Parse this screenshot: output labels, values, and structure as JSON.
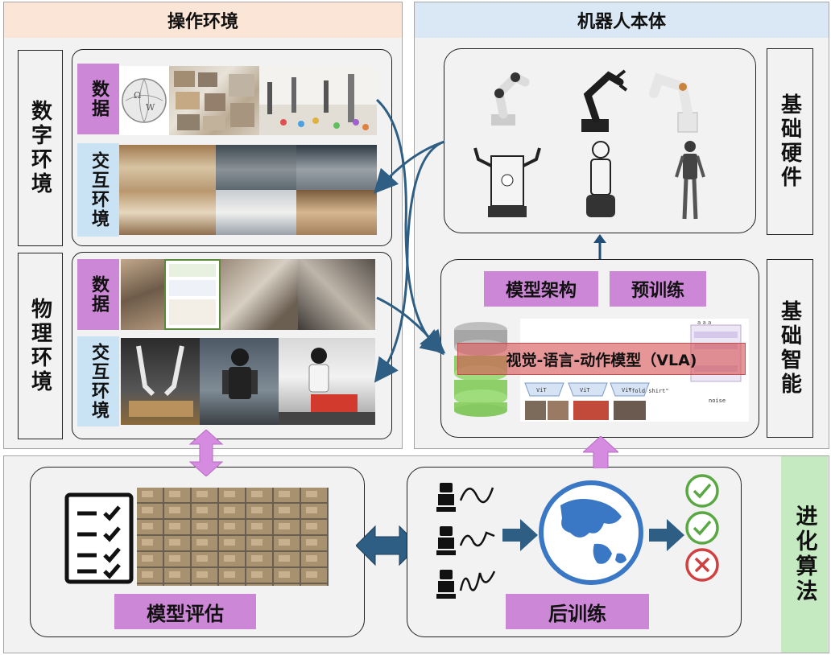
{
  "sections": {
    "operation_env": "操作环境",
    "robot_body": "机器人本体",
    "evolution_algo": "进化算法"
  },
  "left_labels": {
    "digital_env": "数字环境",
    "physical_env": "物理环境"
  },
  "tags": {
    "digital_data": "数据",
    "digital_interact": "交互环境",
    "physical_data": "数据",
    "physical_interact": "交互环境"
  },
  "right_labels": {
    "base_hardware": "基础硬件",
    "base_intelligence": "基础智能"
  },
  "intelligence": {
    "model_arch": "模型架构",
    "pretrain": "预训练",
    "vla_title": "视觉-语言-动作模型（VLA)",
    "vit_labels": [
      "ViT",
      "ViT",
      "ViT"
    ],
    "instruction": "\"fold shirt\"",
    "noise_label": "noise"
  },
  "evolution": {
    "model_eval": "模型评估",
    "post_train": "后训练"
  },
  "colors": {
    "purple_tag": "#cc88d6",
    "blue_tag": "#c9e3f5",
    "orange_header": "#fbe5d6",
    "blue_header": "#dae8f5",
    "green_header": "#c5e9c0",
    "arrow_navy": "#1f4e79",
    "arrow_pink": "#d58be0"
  }
}
